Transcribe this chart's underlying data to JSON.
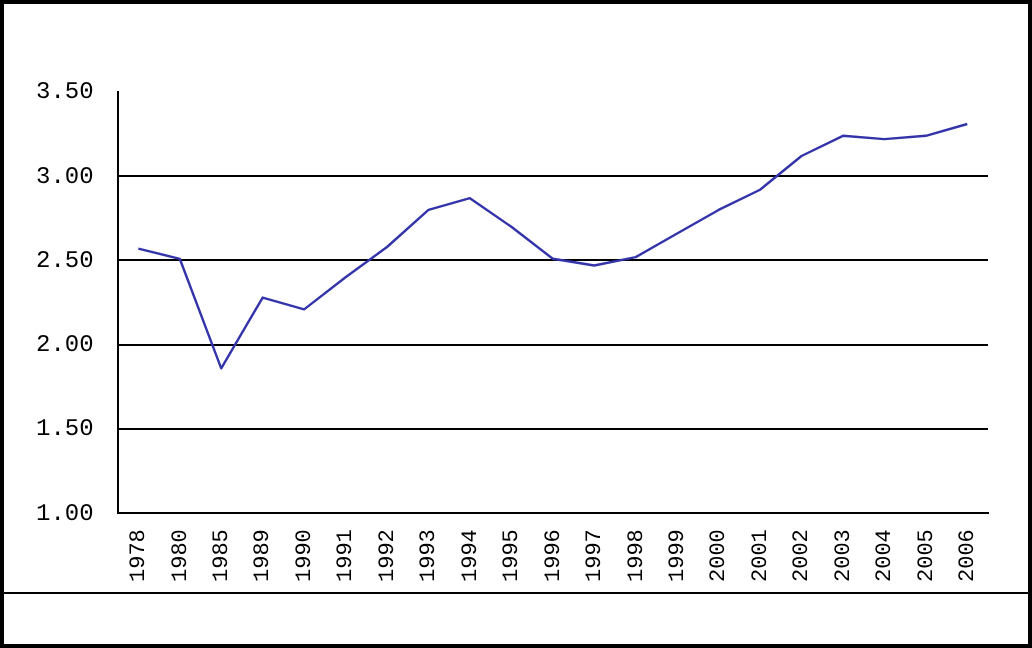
{
  "chart_data": {
    "type": "line",
    "categories": [
      "1978",
      "1980",
      "1985",
      "1989",
      "1990",
      "1991",
      "1992",
      "1993",
      "1994",
      "1995",
      "1996",
      "1997",
      "1998",
      "1999",
      "2000",
      "2001",
      "2002",
      "2003",
      "2004",
      "2005",
      "2006"
    ],
    "series": [
      {
        "color": "#3333aa",
        "values": [
          2.57,
          2.51,
          1.86,
          2.28,
          2.21,
          2.4,
          2.58,
          2.8,
          2.87,
          2.7,
          2.51,
          2.47,
          2.52,
          2.66,
          2.8,
          2.92,
          3.12,
          3.24,
          3.22,
          3.24,
          3.31
        ]
      }
    ],
    "ylim": [
      1,
      3.5
    ],
    "yticks": [
      {
        "value": 1,
        "label": "1.00"
      },
      {
        "value": 1.5,
        "label": "1.50"
      },
      {
        "value": 2,
        "label": "2.00"
      },
      {
        "value": 2.5,
        "label": "2.50"
      },
      {
        "value": 3,
        "label": "3.00"
      },
      {
        "value": 3.5,
        "label": "3.50"
      }
    ],
    "grid": "y",
    "marker": "none",
    "line_style": "solid"
  }
}
